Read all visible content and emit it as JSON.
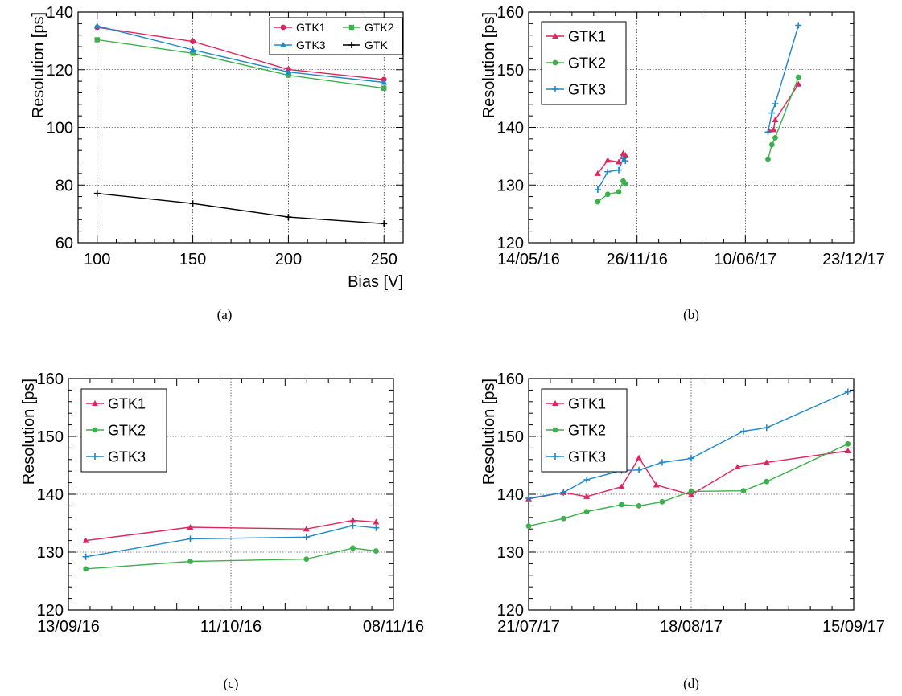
{
  "chart_data": [
    {
      "panel": "(a)",
      "type": "line",
      "ylabel": "Resolution [ps]",
      "xlabel": "Bias [V]",
      "xlim": [
        90,
        260
      ],
      "ylim": [
        60,
        140
      ],
      "xticks": [
        "100",
        "150",
        "200",
        "250"
      ],
      "yticks": [
        "60",
        "80",
        "100",
        "120",
        "140"
      ],
      "grid": true,
      "legend": "top-right",
      "series": [
        {
          "name": "GTK1",
          "color": "#e0245e",
          "marker": "circle",
          "x": [
            100,
            150,
            200,
            250
          ],
          "y": [
            134.7,
            129.8,
            120.1,
            116.6
          ]
        },
        {
          "name": "GTK2",
          "color": "#3cb04a",
          "marker": "square",
          "x": [
            100,
            150,
            200,
            250
          ],
          "y": [
            130.4,
            125.7,
            118.1,
            113.6
          ]
        },
        {
          "name": "GTK3",
          "color": "#1e88c8",
          "marker": "triangle",
          "x": [
            100,
            150,
            200,
            250
          ],
          "y": [
            135.2,
            126.9,
            119.2,
            115.6
          ]
        },
        {
          "name": "GTK",
          "color": "#000000",
          "marker": "plus",
          "x": [
            100,
            150,
            200,
            250
          ],
          "y": [
            77.1,
            73.6,
            68.9,
            66.6
          ]
        }
      ]
    },
    {
      "panel": "(b)",
      "type": "line",
      "ylabel": "Resolution [ps]",
      "xlabel": "",
      "x_is_date": true,
      "xlim": [
        "2016-05-14",
        "2017-12-23"
      ],
      "ylim": [
        120,
        160
      ],
      "xticks": [
        "14/05/16",
        "26/11/16",
        "10/06/17",
        "23/12/17"
      ],
      "xtick_dates": [
        "2016-05-14",
        "2016-11-26",
        "2017-06-10",
        "2017-12-23"
      ],
      "yticks": [
        "120",
        "130",
        "140",
        "150",
        "160"
      ],
      "grid": true,
      "legend": "top-left",
      "series": [
        {
          "name": "GTK1",
          "color": "#e0245e",
          "marker": "triangle",
          "x": [
            "2016-09-16",
            "2016-10-04",
            "2016-10-24",
            "2016-11-01",
            "2016-11-05",
            null,
            "2017-07-23",
            "2017-07-31",
            "2017-08-03",
            "2017-09-14"
          ],
          "y": [
            132.0,
            134.3,
            134.0,
            135.5,
            135.2,
            null,
            139.4,
            139.6,
            141.3,
            147.5
          ]
        },
        {
          "name": "GTK2",
          "color": "#3cb04a",
          "marker": "circle",
          "x": [
            "2016-09-16",
            "2016-10-04",
            "2016-10-24",
            "2016-11-01",
            "2016-11-05",
            null,
            "2017-07-21",
            "2017-07-28",
            "2017-08-03",
            "2017-09-14"
          ],
          "y": [
            127.1,
            128.4,
            128.8,
            130.7,
            130.2,
            null,
            134.5,
            137.0,
            138.2,
            148.7
          ]
        },
        {
          "name": "GTK3",
          "color": "#1e88c8",
          "marker": "plus",
          "x": [
            "2016-09-16",
            "2016-10-04",
            "2016-10-24",
            "2016-11-01",
            "2016-11-05",
            null,
            "2017-07-21",
            "2017-07-28",
            "2017-08-03",
            "2017-09-14"
          ],
          "y": [
            129.2,
            132.3,
            132.6,
            134.6,
            134.2,
            null,
            139.2,
            142.5,
            144.1,
            157.7
          ]
        }
      ]
    },
    {
      "panel": "(c)",
      "type": "line",
      "ylabel": "Resolution [ps]",
      "xlabel": "",
      "x_is_date": true,
      "xlim": [
        "2016-09-13",
        "2016-11-08"
      ],
      "ylim": [
        120,
        160
      ],
      "xticks": [
        "13/09/16",
        "11/10/16",
        "08/11/16"
      ],
      "xtick_dates": [
        "2016-09-13",
        "2016-10-11",
        "2016-11-08"
      ],
      "yticks": [
        "120",
        "130",
        "140",
        "150",
        "160"
      ],
      "grid": true,
      "legend": "top-left",
      "series": [
        {
          "name": "GTK1",
          "color": "#e0245e",
          "marker": "triangle",
          "x": [
            "2016-09-16",
            "2016-10-04",
            "2016-10-24",
            "2016-11-01",
            "2016-11-05"
          ],
          "y": [
            132.0,
            134.3,
            134.0,
            135.5,
            135.2
          ]
        },
        {
          "name": "GTK2",
          "color": "#3cb04a",
          "marker": "circle",
          "x": [
            "2016-09-16",
            "2016-10-04",
            "2016-10-24",
            "2016-11-01",
            "2016-11-05"
          ],
          "y": [
            127.1,
            128.4,
            128.8,
            130.7,
            130.2
          ]
        },
        {
          "name": "GTK3",
          "color": "#1e88c8",
          "marker": "plus",
          "x": [
            "2016-09-16",
            "2016-10-04",
            "2016-10-24",
            "2016-11-01",
            "2016-11-05"
          ],
          "y": [
            129.2,
            132.3,
            132.6,
            134.6,
            134.2
          ]
        }
      ]
    },
    {
      "panel": "(d)",
      "type": "line",
      "ylabel": "Resolution [ps]",
      "xlabel": "",
      "x_is_date": true,
      "xlim": [
        "2017-07-21",
        "2017-09-15"
      ],
      "ylim": [
        120,
        160
      ],
      "xticks": [
        "21/07/17",
        "18/08/17",
        "15/09/17"
      ],
      "xtick_dates": [
        "2017-07-21",
        "2017-08-18",
        "2017-09-15"
      ],
      "yticks": [
        "120",
        "130",
        "140",
        "150",
        "160"
      ],
      "grid": true,
      "legend": "top-left",
      "series": [
        {
          "name": "GTK1",
          "color": "#e0245e",
          "marker": "triangle",
          "x": [
            "2017-07-21",
            "2017-07-27",
            "2017-07-31",
            "2017-08-06",
            "2017-08-09",
            "2017-08-12",
            "2017-08-18",
            "2017-08-26",
            "2017-08-31",
            "2017-09-14"
          ],
          "y": [
            139.2,
            140.3,
            139.6,
            141.3,
            146.3,
            141.6,
            139.9,
            144.7,
            145.5,
            147.5
          ]
        },
        {
          "name": "GTK2",
          "color": "#3cb04a",
          "marker": "circle",
          "x": [
            "2017-07-21",
            "2017-07-27",
            "2017-07-31",
            "2017-08-06",
            "2017-08-09",
            "2017-08-13",
            "2017-08-18",
            "2017-08-27",
            "2017-08-31",
            "2017-09-14"
          ],
          "y": [
            134.5,
            135.8,
            137.0,
            138.2,
            138.0,
            138.7,
            140.5,
            140.6,
            142.2,
            148.7
          ]
        },
        {
          "name": "GTK3",
          "color": "#1e88c8",
          "marker": "plus",
          "x": [
            "2017-07-21",
            "2017-07-27",
            "2017-07-31",
            "2017-08-06",
            "2017-08-09",
            "2017-08-13",
            "2017-08-18",
            "2017-08-27",
            "2017-08-31",
            "2017-09-14"
          ],
          "y": [
            139.3,
            140.3,
            142.5,
            144.1,
            144.2,
            145.5,
            146.2,
            150.9,
            151.5,
            157.7
          ]
        }
      ]
    }
  ]
}
